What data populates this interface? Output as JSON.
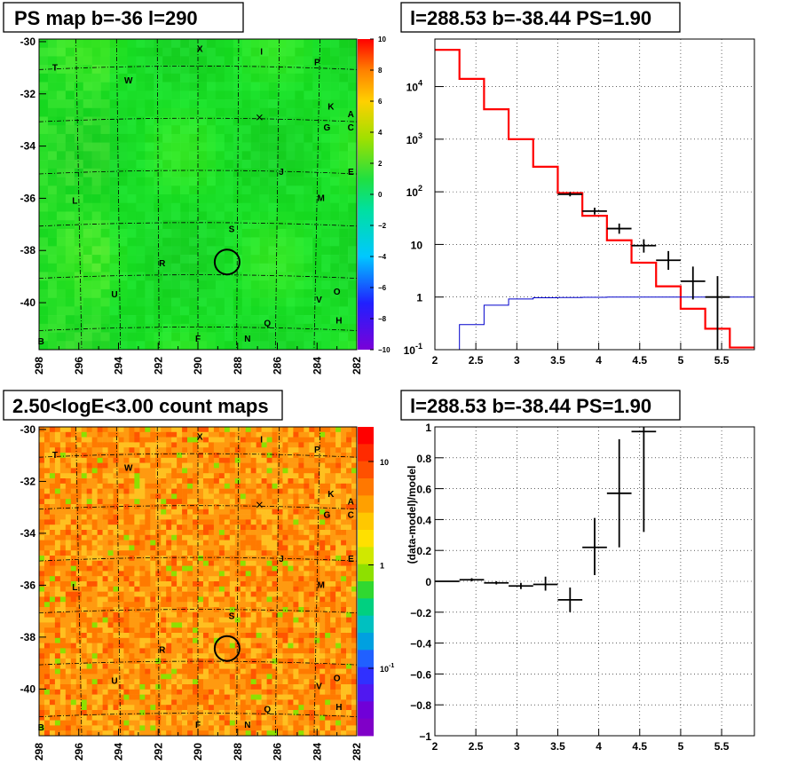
{
  "titles": {
    "tl": "PS map b=-36 l=290",
    "tr": "l=288.53 b=-38.44 PS=1.90",
    "bl": "2.50<logE<3.00 count maps",
    "br": "l=288.53 b=-38.44 PS=1.90"
  },
  "colors": {
    "hist_model": "#ff0000",
    "hist_bkg": "#0000cc",
    "data": "#000000",
    "grid": "#000000"
  },
  "chart_data": [
    {
      "type": "heatmap",
      "title": "PS map b=-36 l=290",
      "xlim": [
        298,
        282
      ],
      "ylim": [
        -41.8,
        -29.9
      ],
      "x_ticks": [
        "298",
        "296",
        "294",
        "292",
        "290",
        "288",
        "286",
        "284",
        "282"
      ],
      "y_ticks": [
        "-30",
        "-32",
        "-34",
        "-36",
        "-38",
        "-40"
      ],
      "colorbar": {
        "min": -10,
        "max": 10,
        "ticks": [
          "10",
          "8",
          "6",
          "4",
          "2",
          "0",
          "−2",
          "−4",
          "−6",
          "−8",
          "−10"
        ]
      },
      "markers": [
        {
          "label": "T",
          "l": 297.2,
          "b": -31.1
        },
        {
          "label": "W",
          "l": 293.5,
          "b": -31.6
        },
        {
          "label": "X",
          "l": 289.9,
          "b": -30.4
        },
        {
          "label": "I",
          "l": 286.8,
          "b": -30.5
        },
        {
          "label": "P",
          "l": 284.0,
          "b": -30.9
        },
        {
          "label": "K",
          "l": 283.3,
          "b": -32.6
        },
        {
          "label": "A",
          "l": 282.3,
          "b": -32.9
        },
        {
          "label": "G",
          "l": 283.5,
          "b": -33.4
        },
        {
          "label": "C",
          "l": 282.3,
          "b": -33.4
        },
        {
          "label": "J",
          "l": 285.8,
          "b": -35.1
        },
        {
          "label": "E",
          "l": 282.3,
          "b": -35.1
        },
        {
          "label": "L",
          "l": 296.2,
          "b": -36.2
        },
        {
          "label": "M",
          "l": 283.8,
          "b": -36.1
        },
        {
          "label": "S",
          "l": 288.3,
          "b": -37.3
        },
        {
          "label": "R",
          "l": 291.8,
          "b": -38.6
        },
        {
          "label": "U",
          "l": 294.2,
          "b": -39.8
        },
        {
          "label": "O",
          "l": 283.0,
          "b": -39.7
        },
        {
          "label": "V",
          "l": 283.9,
          "b": -40.0
        },
        {
          "label": "Q",
          "l": 286.5,
          "b": -40.9
        },
        {
          "label": "H",
          "l": 282.9,
          "b": -40.8
        },
        {
          "label": "B",
          "l": 297.9,
          "b": -41.6
        },
        {
          "label": "F",
          "l": 290.0,
          "b": -41.5
        },
        {
          "label": "N",
          "l": 287.5,
          "b": -41.5
        }
      ],
      "source": {
        "l": 288.53,
        "b": -38.44
      },
      "cross": {
        "l": 286.9,
        "b": -32.9
      }
    },
    {
      "type": "line",
      "title": "l=288.53 b=-38.44 PS=1.90",
      "xlabel": "",
      "ylabel": "",
      "xlim": [
        2,
        5.9
      ],
      "ylim": [
        0.1,
        80000
      ],
      "yscale": "log",
      "x_ticks": [
        "2",
        "2.5",
        "3",
        "3.5",
        "4",
        "4.5",
        "5",
        "5.5"
      ],
      "y_ticks": [
        {
          "v": 0.1,
          "t": "10"
        },
        {
          "v": 1,
          "t": "1"
        },
        {
          "v": 10,
          "t": "10"
        },
        {
          "v": 100,
          "t": "10"
        },
        {
          "v": 1000,
          "t": "10"
        },
        {
          "v": 10000,
          "t": "10"
        }
      ],
      "series": [
        {
          "kind": "step",
          "color": "red",
          "edges": [
            2.0,
            2.3,
            2.6,
            2.9,
            3.2,
            3.5,
            3.8,
            4.1,
            4.4,
            4.7,
            5.0,
            5.3,
            5.6,
            5.9
          ],
          "values": [
            50000,
            14000,
            3700,
            1000,
            300,
            95,
            35,
            12,
            4.5,
            1.6,
            0.6,
            0.25,
            0.11
          ]
        },
        {
          "kind": "step",
          "color": "blue",
          "edges": [
            2.0,
            2.3,
            2.6,
            2.9,
            3.2,
            3.5,
            3.8,
            4.1,
            4.4,
            4.7,
            5.0,
            5.3,
            5.6,
            5.9
          ],
          "values": [
            0.02,
            0.3,
            0.7,
            0.92,
            0.97,
            0.98,
            0.99,
            1.0,
            1.0,
            1.0,
            1.0,
            1.0,
            1.0
          ]
        },
        {
          "kind": "points",
          "color": "black",
          "points": [
            {
              "x": 3.65,
              "y": 90,
              "xerr": 0.15,
              "ylo": 82,
              "yhi": 98
            },
            {
              "x": 3.95,
              "y": 43,
              "xerr": 0.15,
              "ylo": 37,
              "yhi": 50
            },
            {
              "x": 4.25,
              "y": 20,
              "xerr": 0.15,
              "ylo": 16,
              "yhi": 25
            },
            {
              "x": 4.55,
              "y": 9.5,
              "xerr": 0.15,
              "ylo": 7.0,
              "yhi": 12.5
            },
            {
              "x": 4.85,
              "y": 5.0,
              "xerr": 0.15,
              "ylo": 3.3,
              "yhi": 7.5
            },
            {
              "x": 5.15,
              "y": 2.0,
              "xerr": 0.15,
              "ylo": 0.9,
              "yhi": 3.8
            },
            {
              "x": 5.45,
              "y": 1.0,
              "xerr": 0.15,
              "ylo": 0.1,
              "yhi": 2.5
            }
          ]
        }
      ]
    },
    {
      "type": "heatmap",
      "title": "2.50<logE<3.00 count maps",
      "xlim": [
        298,
        282
      ],
      "ylim": [
        -41.8,
        -29.9
      ],
      "x_ticks": [
        "298",
        "296",
        "294",
        "292",
        "290",
        "288",
        "286",
        "284",
        "282"
      ],
      "y_ticks": [
        "-30",
        "-32",
        "-34",
        "-36",
        "-38",
        "-40"
      ],
      "colorbar": {
        "scale": "log",
        "ticks": [
          {
            "v": 10,
            "t": "10"
          },
          {
            "v": 1,
            "t": "1"
          },
          {
            "v": 0.1,
            "t": "10"
          }
        ]
      },
      "source": {
        "l": 288.53,
        "b": -38.44
      },
      "cross": {
        "l": 286.9,
        "b": -32.9
      }
    },
    {
      "type": "scatter",
      "title": "l=288.53 b=-38.44 PS=1.90",
      "xlabel": "",
      "ylabel": "(data-model)/model",
      "xlim": [
        2,
        5.9
      ],
      "ylim": [
        -1,
        1
      ],
      "x_ticks": [
        "2",
        "2.5",
        "3",
        "3.5",
        "4",
        "4.5",
        "5",
        "5.5"
      ],
      "y_ticks": [
        "1",
        "0.8",
        "0.6",
        "0.4",
        "0.2",
        "0",
        "−0.2",
        "−0.4",
        "−0.6",
        "−0.8",
        "−1"
      ],
      "points": [
        {
          "x": 2.15,
          "y": 0.0,
          "xerr": 0.15,
          "ylo": -0.005,
          "yhi": 0.005
        },
        {
          "x": 2.45,
          "y": 0.01,
          "xerr": 0.15,
          "ylo": 0.0,
          "yhi": 0.02
        },
        {
          "x": 2.75,
          "y": -0.01,
          "xerr": 0.15,
          "ylo": -0.02,
          "yhi": 0.0
        },
        {
          "x": 3.05,
          "y": -0.03,
          "xerr": 0.15,
          "ylo": -0.05,
          "yhi": -0.01
        },
        {
          "x": 3.35,
          "y": -0.02,
          "xerr": 0.15,
          "ylo": -0.06,
          "yhi": 0.03
        },
        {
          "x": 3.65,
          "y": -0.12,
          "xerr": 0.15,
          "ylo": -0.2,
          "yhi": -0.04
        },
        {
          "x": 3.95,
          "y": 0.22,
          "xerr": 0.15,
          "ylo": 0.04,
          "yhi": 0.41
        },
        {
          "x": 4.25,
          "y": 0.57,
          "xerr": 0.15,
          "ylo": 0.22,
          "yhi": 0.92
        },
        {
          "x": 4.55,
          "y": 0.97,
          "xerr": 0.15,
          "ylo": 0.32,
          "yhi": 1.55
        }
      ]
    }
  ]
}
